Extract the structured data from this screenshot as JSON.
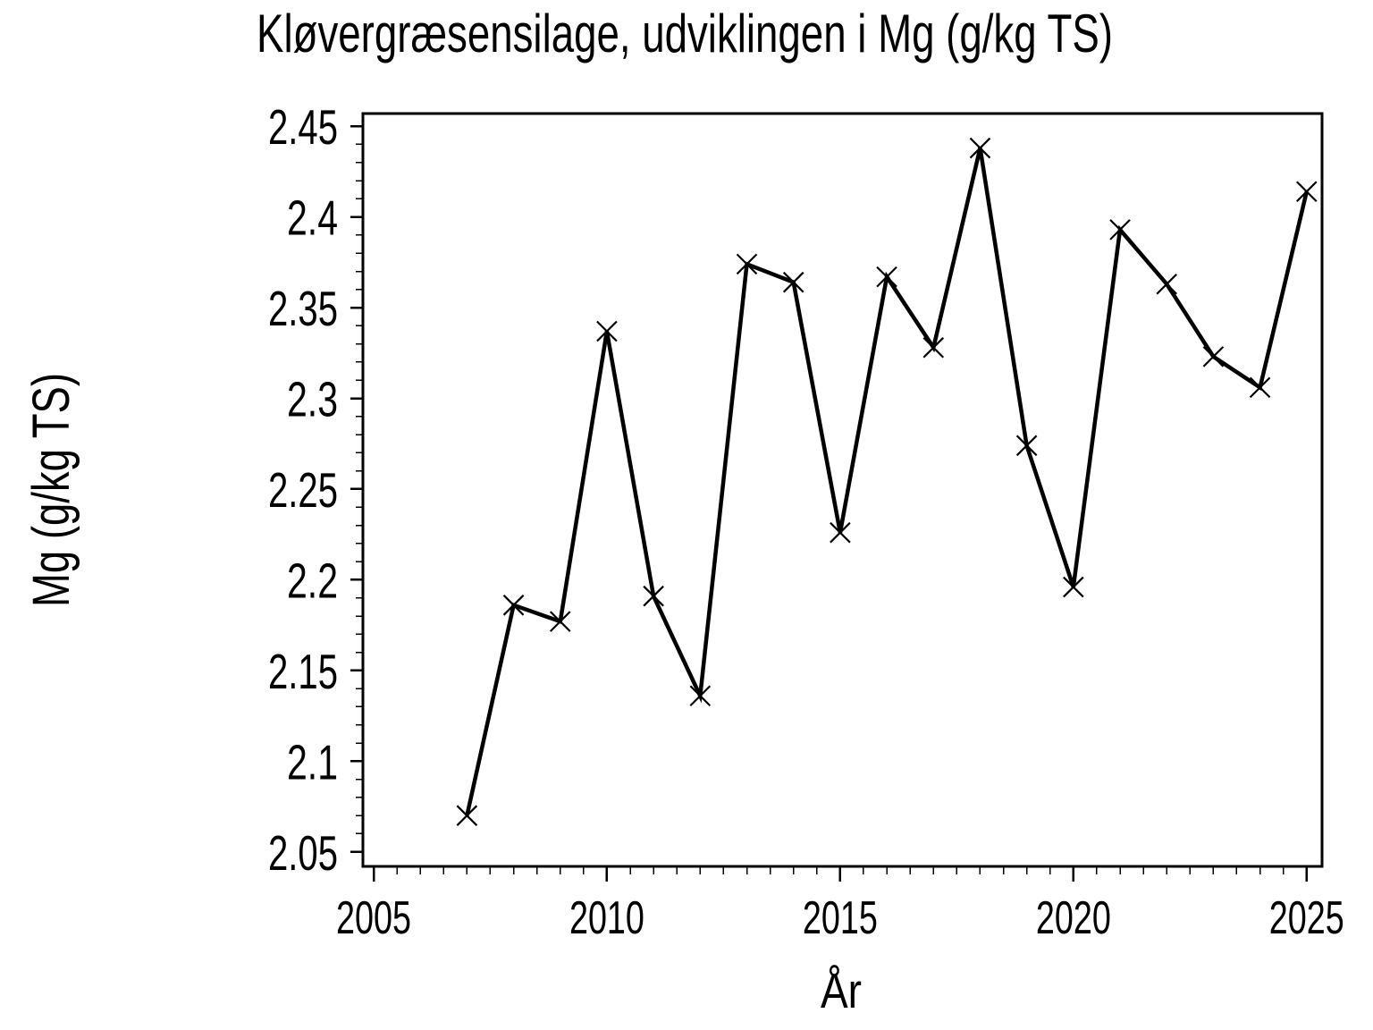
{
  "chart_data": {
    "type": "line",
    "title": "Kløvergræsensilage, udviklingen i Mg (g/kg TS)",
    "xlabel": "År",
    "ylabel": "Mg (g/kg TS)",
    "x": [
      2007,
      2008,
      2009,
      2010,
      2011,
      2012,
      2013,
      2014,
      2015,
      2016,
      2017,
      2018,
      2019,
      2020,
      2021,
      2022,
      2023,
      2024,
      2025
    ],
    "values": [
      2.07,
      2.186,
      2.177,
      2.337,
      2.191,
      2.136,
      2.374,
      2.364,
      2.226,
      2.367,
      2.328,
      2.438,
      2.274,
      2.196,
      2.393,
      2.363,
      2.323,
      2.306,
      2.414
    ],
    "marker": "x",
    "line_color": "#000000",
    "background_color": "#ffffff",
    "grid": false,
    "legend": "none",
    "xlim": [
      2004.77,
      2025.33
    ],
    "ylim": [
      2.042,
      2.457
    ],
    "x_major_ticks": [
      2005,
      2010,
      2015,
      2020,
      2025
    ],
    "x_tick_labels": [
      "2005",
      "2010",
      "2015",
      "2020",
      "2025"
    ],
    "x_minor_step": 0.5,
    "y_major_ticks": [
      2.45,
      2.4,
      2.35,
      2.3,
      2.25,
      2.2,
      2.15,
      2.1,
      2.05
    ],
    "y_tick_labels": [
      "2.45",
      "2.4",
      "2.35",
      "2.3",
      "2.25",
      "2.2",
      "2.15",
      "2.1",
      "2.05"
    ],
    "y_minor_step": 0.01
  }
}
